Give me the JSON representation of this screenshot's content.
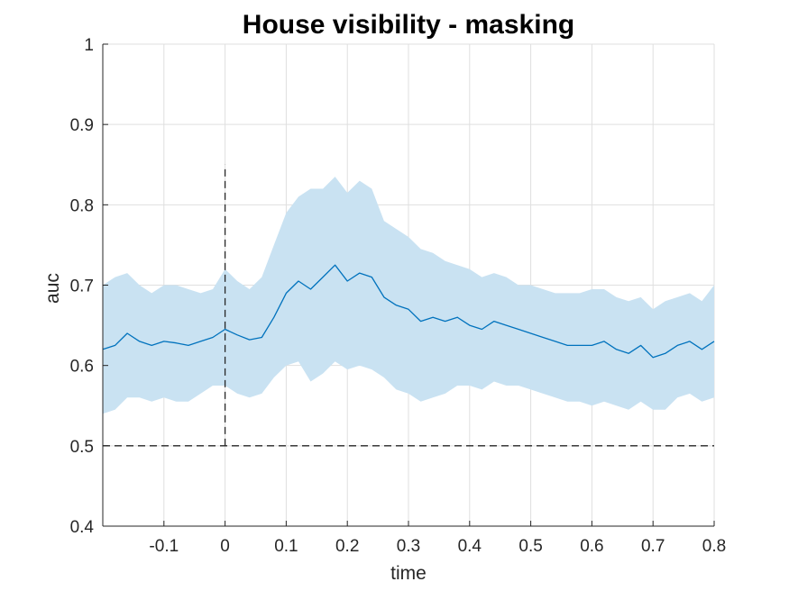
{
  "chart_data": {
    "type": "line",
    "title": "House visibility - masking",
    "xlabel": "time",
    "ylabel": "auc",
    "xlim": [
      -0.2,
      0.8
    ],
    "ylim": [
      0.4,
      1.0
    ],
    "grid": true,
    "xticks": [
      -0.1,
      0,
      0.1,
      0.2,
      0.3,
      0.4,
      0.5,
      0.6,
      0.7,
      0.8
    ],
    "xtick_labels": [
      "-0.1",
      "0",
      "0.1",
      "0.2",
      "0.3",
      "0.4",
      "0.5",
      "0.6",
      "0.7",
      "0.8"
    ],
    "yticks": [
      0.4,
      0.5,
      0.6,
      0.7,
      0.8,
      0.9,
      1.0
    ],
    "ytick_labels": [
      "0.4",
      "0.5",
      "0.6",
      "0.7",
      "0.8",
      "0.9",
      "1"
    ],
    "colors": {
      "line": "#0072BD",
      "band": "#c9e2f2",
      "reference": "#262626",
      "grid": "#dfdfdf"
    },
    "reference_lines": [
      {
        "orientation": "horizontal",
        "value": 0.5,
        "style": "dashed"
      },
      {
        "orientation": "vertical",
        "value": 0,
        "y_range": [
          0.5,
          0.85
        ],
        "style": "dashed"
      }
    ],
    "x": [
      -0.2,
      -0.18,
      -0.16,
      -0.14,
      -0.12,
      -0.1,
      -0.08,
      -0.06,
      -0.04,
      -0.02,
      0.0,
      0.02,
      0.04,
      0.06,
      0.08,
      0.1,
      0.12,
      0.14,
      0.16,
      0.18,
      0.2,
      0.22,
      0.24,
      0.26,
      0.28,
      0.3,
      0.32,
      0.34,
      0.36,
      0.38,
      0.4,
      0.42,
      0.44,
      0.46,
      0.48,
      0.5,
      0.52,
      0.54,
      0.56,
      0.58,
      0.6,
      0.62,
      0.64,
      0.66,
      0.68,
      0.7,
      0.72,
      0.74,
      0.76,
      0.78,
      0.8
    ],
    "mean": [
      0.62,
      0.625,
      0.64,
      0.63,
      0.625,
      0.63,
      0.628,
      0.625,
      0.63,
      0.635,
      0.645,
      0.638,
      0.632,
      0.635,
      0.66,
      0.69,
      0.705,
      0.695,
      0.71,
      0.725,
      0.705,
      0.715,
      0.71,
      0.685,
      0.675,
      0.67,
      0.655,
      0.66,
      0.655,
      0.66,
      0.65,
      0.645,
      0.655,
      0.65,
      0.645,
      0.64,
      0.635,
      0.63,
      0.625,
      0.625,
      0.625,
      0.63,
      0.62,
      0.615,
      0.625,
      0.61,
      0.615,
      0.625,
      0.63,
      0.62,
      0.63
    ],
    "upper": [
      0.7,
      0.71,
      0.715,
      0.7,
      0.69,
      0.7,
      0.7,
      0.695,
      0.69,
      0.695,
      0.72,
      0.705,
      0.695,
      0.71,
      0.75,
      0.79,
      0.81,
      0.82,
      0.82,
      0.835,
      0.815,
      0.83,
      0.82,
      0.78,
      0.77,
      0.76,
      0.745,
      0.74,
      0.73,
      0.725,
      0.72,
      0.71,
      0.715,
      0.71,
      0.7,
      0.7,
      0.695,
      0.69,
      0.69,
      0.69,
      0.695,
      0.695,
      0.685,
      0.68,
      0.685,
      0.67,
      0.68,
      0.685,
      0.69,
      0.68,
      0.7
    ],
    "lower": [
      0.54,
      0.545,
      0.56,
      0.56,
      0.555,
      0.56,
      0.555,
      0.555,
      0.565,
      0.575,
      0.575,
      0.565,
      0.56,
      0.565,
      0.585,
      0.6,
      0.605,
      0.58,
      0.59,
      0.605,
      0.595,
      0.6,
      0.595,
      0.585,
      0.57,
      0.565,
      0.555,
      0.56,
      0.565,
      0.575,
      0.575,
      0.57,
      0.58,
      0.575,
      0.575,
      0.57,
      0.565,
      0.56,
      0.555,
      0.555,
      0.55,
      0.555,
      0.55,
      0.545,
      0.555,
      0.545,
      0.545,
      0.56,
      0.565,
      0.555,
      0.56
    ]
  }
}
